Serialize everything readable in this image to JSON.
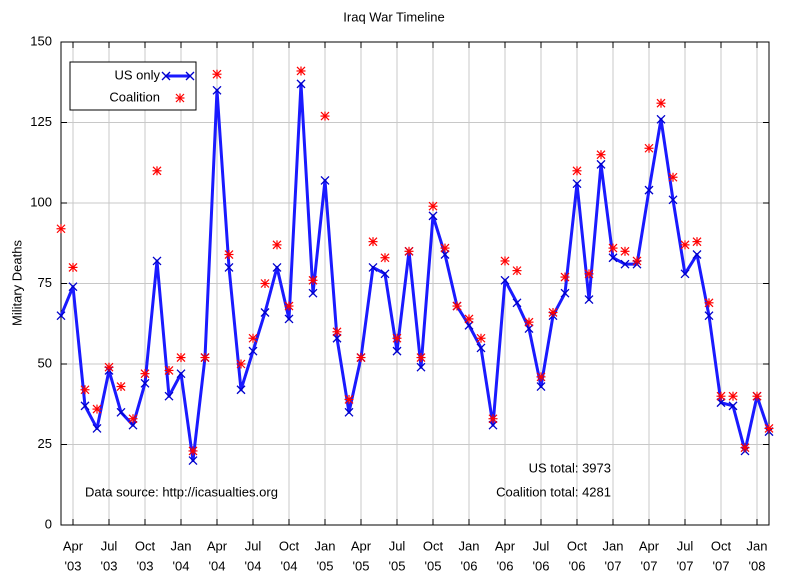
{
  "chart_data": {
    "type": "line",
    "title": "Iraq War Timeline",
    "y_label": "Military Deaths",
    "x": [
      "2003-03",
      "2003-04",
      "2003-05",
      "2003-06",
      "2003-07",
      "2003-08",
      "2003-09",
      "2003-10",
      "2003-11",
      "2003-12",
      "2004-01",
      "2004-02",
      "2004-03",
      "2004-04",
      "2004-05",
      "2004-06",
      "2004-07",
      "2004-08",
      "2004-09",
      "2004-10",
      "2004-11",
      "2004-12",
      "2005-01",
      "2005-02",
      "2005-03",
      "2005-04",
      "2005-05",
      "2005-06",
      "2005-07",
      "2005-08",
      "2005-09",
      "2005-10",
      "2005-11",
      "2005-12",
      "2006-01",
      "2006-02",
      "2006-03",
      "2006-04",
      "2006-05",
      "2006-06",
      "2006-07",
      "2006-08",
      "2006-09",
      "2006-10",
      "2006-11",
      "2006-12",
      "2007-01",
      "2007-02",
      "2007-03",
      "2007-04",
      "2007-05",
      "2007-06",
      "2007-07",
      "2007-08",
      "2007-09",
      "2007-10",
      "2007-11",
      "2007-12",
      "2008-01",
      "2008-02"
    ],
    "series": [
      {
        "name": "US only",
        "color": "#1a1aff",
        "marker": "x",
        "line": true,
        "values": [
          65,
          74,
          37,
          30,
          48,
          35,
          31,
          44,
          82,
          40,
          47,
          20,
          52,
          135,
          80,
          42,
          54,
          66,
          80,
          64,
          137,
          72,
          107,
          58,
          35,
          52,
          80,
          78,
          54,
          85,
          49,
          96,
          84,
          68,
          62,
          55,
          31,
          76,
          69,
          61,
          43,
          65,
          72,
          106,
          70,
          112,
          83,
          81,
          81,
          104,
          126,
          101,
          78,
          84,
          65,
          38,
          37,
          23,
          40,
          29
        ]
      },
      {
        "name": "Coalition",
        "color": "#ff0000",
        "marker": "star",
        "line": false,
        "values": [
          92,
          80,
          42,
          36,
          49,
          43,
          33,
          47,
          110,
          48,
          52,
          23,
          52,
          140,
          84,
          50,
          58,
          75,
          87,
          68,
          141,
          76,
          127,
          60,
          39,
          52,
          88,
          83,
          58,
          85,
          52,
          99,
          86,
          68,
          64,
          58,
          33,
          82,
          79,
          63,
          46,
          66,
          77,
          110,
          78,
          115,
          86,
          85,
          82,
          117,
          131,
          108,
          87,
          88,
          69,
          40,
          40,
          24,
          40,
          30
        ]
      }
    ],
    "xticks": [
      {
        "value": "2003-04",
        "label": "Apr",
        "year": "'03"
      },
      {
        "value": "2003-07",
        "label": "Jul",
        "year": "'03"
      },
      {
        "value": "2003-10",
        "label": "Oct",
        "year": "'03"
      },
      {
        "value": "2004-01",
        "label": "Jan",
        "year": "'04"
      },
      {
        "value": "2004-04",
        "label": "Apr",
        "year": "'04"
      },
      {
        "value": "2004-07",
        "label": "Jul",
        "year": "'04"
      },
      {
        "value": "2004-10",
        "label": "Oct",
        "year": "'04"
      },
      {
        "value": "2005-01",
        "label": "Jan",
        "year": "'05"
      },
      {
        "value": "2005-04",
        "label": "Apr",
        "year": "'05"
      },
      {
        "value": "2005-07",
        "label": "Jul",
        "year": "'05"
      },
      {
        "value": "2005-10",
        "label": "Oct",
        "year": "'05"
      },
      {
        "value": "2006-01",
        "label": "Jan",
        "year": "'06"
      },
      {
        "value": "2006-04",
        "label": "Apr",
        "year": "'06"
      },
      {
        "value": "2006-07",
        "label": "Jul",
        "year": "'06"
      },
      {
        "value": "2006-10",
        "label": "Oct",
        "year": "'06"
      },
      {
        "value": "2007-01",
        "label": "Jan",
        "year": "'07"
      },
      {
        "value": "2007-04",
        "label": "Apr",
        "year": "'07"
      },
      {
        "value": "2007-07",
        "label": "Jul",
        "year": "'07"
      },
      {
        "value": "2007-10",
        "label": "Oct",
        "year": "'07"
      },
      {
        "value": "2008-01",
        "label": "Jan",
        "year": "'08"
      }
    ],
    "xlim": [
      "2003-03",
      "2008-02"
    ],
    "ylim": [
      0,
      150
    ],
    "yticks": [
      0,
      25,
      50,
      75,
      100,
      125,
      150
    ],
    "grid": true,
    "legend": "upper left",
    "annotations": [
      "Data source: http://icasualties.org",
      "US total: 3973",
      "Coalition total: 4281"
    ]
  }
}
